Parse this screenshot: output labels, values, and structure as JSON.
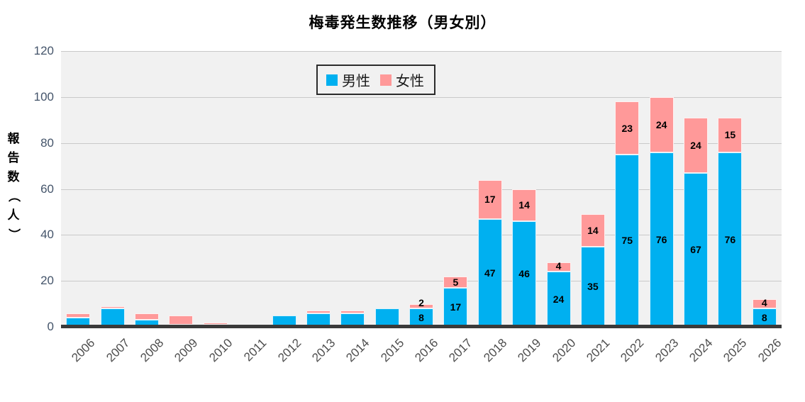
{
  "title": "梅毒発生数推移（男女別）",
  "legend": {
    "items": [
      {
        "id": "male",
        "label": "男性",
        "color": "#00B0F0"
      },
      {
        "id": "female",
        "label": "女性",
        "color": "#FF9999"
      }
    ]
  },
  "y_axis": {
    "title": "報告数（人）",
    "ticks": [
      0,
      20,
      40,
      60,
      80,
      100,
      120
    ]
  },
  "chart_data": {
    "type": "bar",
    "stacked": true,
    "title": "梅毒発生数推移（男女別）",
    "xlabel": "",
    "ylabel": "報告数（人）",
    "ylim": [
      0,
      120
    ],
    "yticks": [
      0,
      20,
      40,
      60,
      80,
      100,
      120
    ],
    "grid": true,
    "legend_position": "top-center-inside",
    "categories": [
      2006,
      2007,
      2008,
      2009,
      2010,
      2011,
      2012,
      2013,
      2014,
      2015,
      2016,
      2017,
      2018,
      2019,
      2020,
      2021,
      2022,
      2023,
      2024,
      2025,
      2026
    ],
    "series": [
      {
        "id": "male",
        "name": "男性",
        "color": "#00B0F0",
        "values": [
          4,
          8,
          3,
          1,
          1,
          0,
          5,
          6,
          6,
          8,
          8,
          17,
          47,
          46,
          24,
          35,
          75,
          76,
          67,
          76,
          8
        ]
      },
      {
        "id": "female",
        "name": "女性",
        "color": "#FF9999",
        "values": [
          2,
          1,
          3,
          4,
          1,
          0,
          0,
          1,
          1,
          0,
          2,
          5,
          17,
          14,
          4,
          14,
          23,
          24,
          24,
          15,
          4
        ]
      }
    ],
    "data_label_years": [
      2016,
      2017,
      2018,
      2019,
      2020,
      2021,
      2022,
      2023,
      2024,
      2025,
      2026
    ]
  },
  "colors": {
    "male": "#00B0F0",
    "female": "#FF9999",
    "plot_background": "#F1F1F1",
    "gridline": "#C9C9C9",
    "axis_line": "#3A3A3A",
    "tick_label": "#44546A",
    "year_label": "#4D4D4D",
    "data_label": "#000000",
    "title": "#000000"
  }
}
